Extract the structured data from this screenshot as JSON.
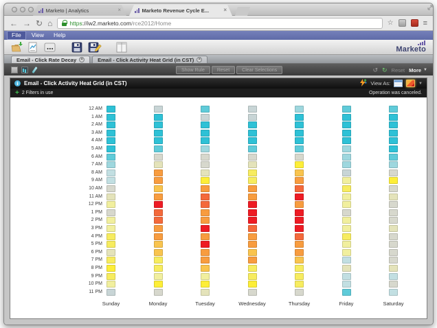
{
  "browser": {
    "tabs": [
      {
        "title": "Marketo | Analytics"
      },
      {
        "title": "Marketo Revenue Cycle E..."
      }
    ],
    "address": {
      "scheme": "https",
      "host": "://iw2.marketo.com",
      "path": "/rce2012/Home"
    }
  },
  "menu_bar": {
    "items": [
      "File",
      "View",
      "Help"
    ]
  },
  "main_toolbar": {
    "logo_text": "Marketo",
    "icons": [
      "open-folder",
      "new-report",
      "more-options",
      "save",
      "save-as",
      "layout-columns"
    ]
  },
  "report_tabs": [
    {
      "label": "Email - Click Rate Decay"
    },
    {
      "label": "Email - Click Activity Heat Grid (in CST)"
    }
  ],
  "report_toolbar": {
    "disabled_buttons": [
      "Show Rule",
      "Reset",
      "Clear Selections"
    ],
    "reset_label": "Reset",
    "more_label": "More"
  },
  "panel": {
    "title": "Email - Click Activity Heat Grid (in CST)",
    "view_as_label": "View As:",
    "filters_text": "2 Filters in use",
    "status_text": "Operation was canceled."
  },
  "chart_data": {
    "type": "heatmap",
    "title": "Email - Click Activity Heat Grid (in CST)",
    "x_categories": [
      "Sunday",
      "Monday",
      "Tuesday",
      "Wednesday",
      "Thursday",
      "Friday",
      "Saturday"
    ],
    "y_categories": [
      "12 AM",
      "1 AM",
      "2 AM",
      "3 AM",
      "4 AM",
      "5 AM",
      "6 AM",
      "7 AM",
      "8 AM",
      "9 AM",
      "10 AM",
      "11 AM",
      "12 PM",
      "1 PM",
      "2 PM",
      "3 PM",
      "4 PM",
      "5 PM",
      "6 PM",
      "7 PM",
      "8 PM",
      "9 PM",
      "10 PM",
      "11 PM"
    ],
    "legend_position": "none",
    "grid": false,
    "palette": {
      "c1": "#2ec1d6",
      "c2": "#5fcbd9",
      "b1": "#9ed7de",
      "b2": "#c2dfe2",
      "b3": "#c8d5d6",
      "g1": "#d7d8cd",
      "t1": "#e4e3ba",
      "y1": "#f1ef9e",
      "y2": "#f7ec5f",
      "y3": "#fdee38",
      "o1": "#f9c44e",
      "o2": "#f89c3f",
      "o3": "#f4693b",
      "r1": "#ee1b24"
    },
    "color_scale_low_to_high": [
      "c1",
      "c2",
      "b1",
      "b2",
      "b3",
      "g1",
      "t1",
      "y1",
      "y2",
      "y3",
      "o1",
      "o2",
      "o3",
      "r1"
    ],
    "columns": [
      {
        "day": "Sunday",
        "cells": [
          "c1",
          "c1",
          "c1",
          "c1",
          "c1",
          "c1",
          "c2",
          "b1",
          "b2",
          "b2",
          "g1",
          "t1",
          "y1",
          "g1",
          "y1",
          "y1",
          "y2",
          "y2",
          "t1",
          "y2",
          "y3",
          "y2",
          "y1",
          "b3"
        ]
      },
      {
        "day": "Monday",
        "cells": [
          "b3",
          "c1",
          "c1",
          "c1",
          "c1",
          "c2",
          "g1",
          "t1",
          "o2",
          "o2",
          "o1",
          "o2",
          "r1",
          "o3",
          "o3",
          "o2",
          "o2",
          "o1",
          "o1",
          "y2",
          "y2",
          "y1",
          "y3",
          "g1"
        ]
      },
      {
        "day": "Tuesday",
        "cells": [
          "c2",
          "b3",
          "c1",
          "c1",
          "c1",
          "b1",
          "g1",
          "g1",
          "t1",
          "y3",
          "o2",
          "o3",
          "o3",
          "o2",
          "o2",
          "r1",
          "o2",
          "r1",
          "o2",
          "o2",
          "o1",
          "y1",
          "y3",
          "t1"
        ]
      },
      {
        "day": "Wednesday",
        "cells": [
          "b3",
          "b3",
          "c1",
          "c1",
          "c1",
          "c2",
          "g1",
          "t1",
          "y2",
          "y2",
          "o2",
          "o2",
          "r1",
          "r1",
          "r1",
          "o3",
          "o2",
          "o2",
          "o1",
          "o2",
          "y2",
          "y2",
          "y3",
          "g1"
        ]
      },
      {
        "day": "Thursday",
        "cells": [
          "b1",
          "c1",
          "c1",
          "c1",
          "c1",
          "c2",
          "g1",
          "y3",
          "o1",
          "o2",
          "o3",
          "r1",
          "o2",
          "r1",
          "r1",
          "r1",
          "o3",
          "o2",
          "o2",
          "o1",
          "y2",
          "y2",
          "y2",
          "g1"
        ]
      },
      {
        "day": "Friday",
        "cells": [
          "c2",
          "c1",
          "c1",
          "c1",
          "c1",
          "b1",
          "b1",
          "b1",
          "b3",
          "y1",
          "y2",
          "y1",
          "y1",
          "g1",
          "y1",
          "y1",
          "y2",
          "y1",
          "y1",
          "b2",
          "t1",
          "b2",
          "b2",
          "c2"
        ]
      },
      {
        "day": "Saturday",
        "cells": [
          "c2",
          "c1",
          "c1",
          "c1",
          "c1",
          "c1",
          "c2",
          "b1",
          "g1",
          "y3",
          "g1",
          "t1",
          "g1",
          "g1",
          "g1",
          "t1",
          "g1",
          "g1",
          "g1",
          "g1",
          "t1",
          "b2",
          "g1",
          "b2"
        ]
      }
    ]
  }
}
